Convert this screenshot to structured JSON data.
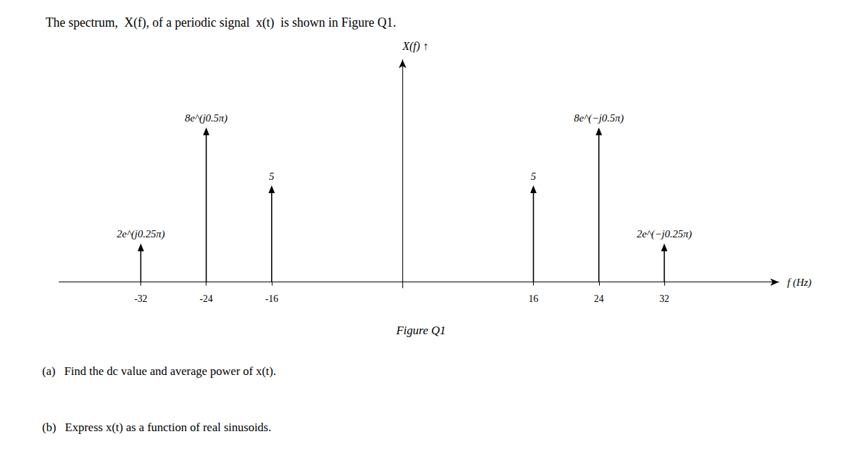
{
  "chart_data": {
    "type": "stem",
    "title": "The spectrum,  X(f), of a periodic signal  x(t)  is shown in Figure Q1.",
    "x_label": "f (Hz)",
    "y_label": "X(f) ↑",
    "x": [
      -32,
      -24,
      -16,
      16,
      24,
      32
    ],
    "values": [
      2,
      8,
      5,
      5,
      8,
      2
    ],
    "value_labels": [
      "2e^(j0.25π)",
      "8e^(j0.5π)",
      "5",
      "5",
      "8e^(−j0.5π)",
      "2e^(−j0.25π)"
    ],
    "data_labels": true,
    "color": "#000000",
    "xlim": [
      -42,
      46
    ],
    "ylim": [
      -0.3,
      11.5
    ],
    "xticks": [
      -32,
      -24,
      -16,
      16,
      24,
      32
    ],
    "grid": false,
    "tick_labels": "x",
    "annotations": [
      "Figure Q1",
      "(a)   Find the dc value and average power of x(t).",
      "(b)   Express x(t) as a function of real sinusoids."
    ]
  }
}
